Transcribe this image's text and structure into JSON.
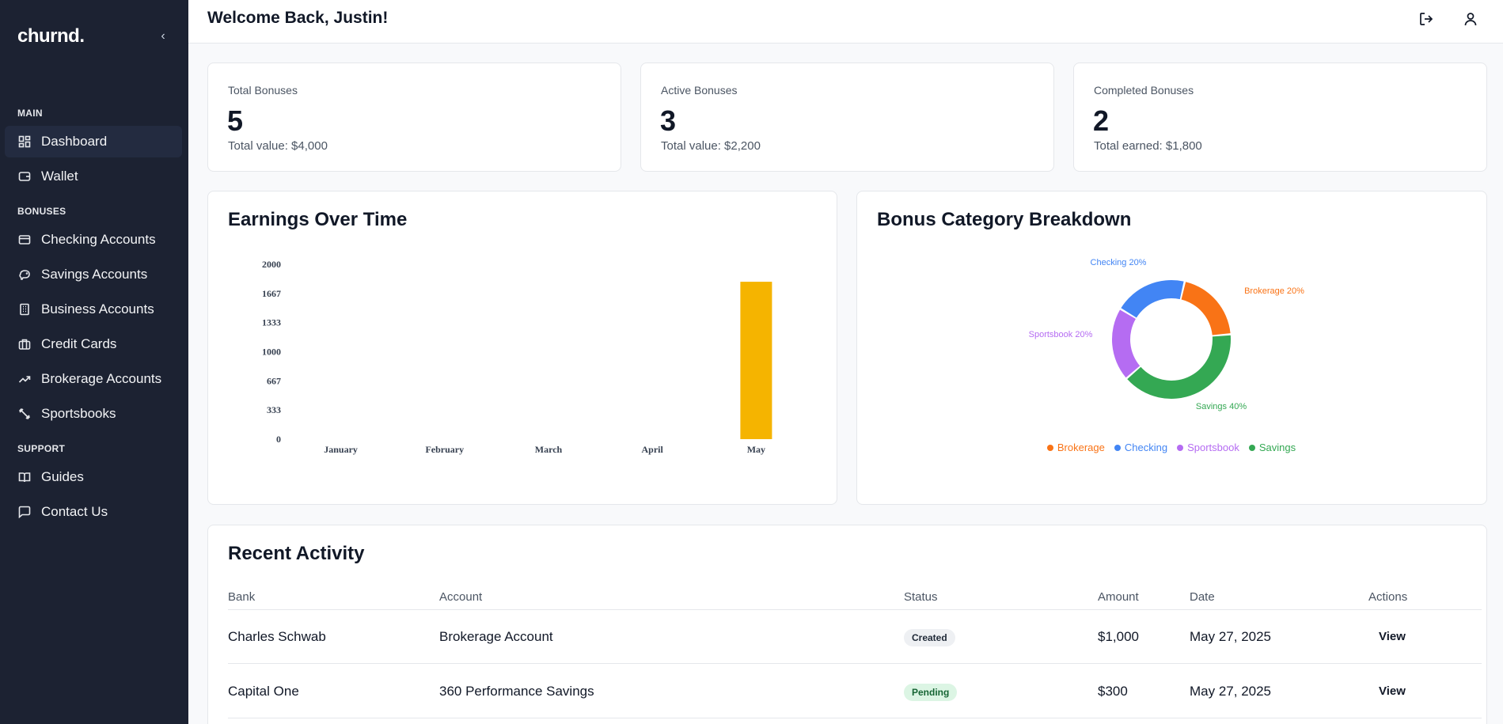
{
  "app": {
    "brand": "churnd.",
    "collapse_icon": "chevron-left-icon"
  },
  "sidebar": {
    "sections": [
      {
        "label": "MAIN"
      },
      {
        "label": "BONUSES"
      },
      {
        "label": "SUPPORT"
      }
    ],
    "items": [
      {
        "label": "Dashboard",
        "icon": "dashboard-grid-icon",
        "active": true
      },
      {
        "label": "Wallet",
        "icon": "wallet-icon"
      },
      {
        "label": "Checking Accounts",
        "icon": "credit-card-icon"
      },
      {
        "label": "Savings Accounts",
        "icon": "piggy-bank-icon"
      },
      {
        "label": "Business Accounts",
        "icon": "building-icon"
      },
      {
        "label": "Credit Cards",
        "icon": "briefcase-icon"
      },
      {
        "label": "Brokerage Accounts",
        "icon": "trending-up-icon"
      },
      {
        "label": "Sportsbooks",
        "icon": "dumbbell-icon"
      },
      {
        "label": "Guides",
        "icon": "book-open-icon"
      },
      {
        "label": "Contact Us",
        "icon": "message-square-icon"
      }
    ]
  },
  "header": {
    "welcome": "Welcome Back, Justin!",
    "logout_icon": "log-out-icon",
    "profile_icon": "user-icon"
  },
  "stats": [
    {
      "title": "Total Bonuses",
      "value": "5",
      "sub": "Total value: $4,000"
    },
    {
      "title": "Active Bonuses",
      "value": "3",
      "sub": "Total value: $2,200"
    },
    {
      "title": "Completed Bonuses",
      "value": "2",
      "sub": "Total earned: $1,800"
    }
  ],
  "earnings": {
    "title": "Earnings Over Time",
    "chart_data": {
      "type": "bar",
      "categories": [
        "January",
        "February",
        "March",
        "April",
        "May"
      ],
      "values": [
        0,
        0,
        0,
        0,
        1800
      ],
      "yticks": [
        "0",
        "333",
        "667",
        "1000",
        "1333",
        "1667",
        "2000"
      ],
      "ylim": [
        0,
        2000
      ],
      "color": "#f5b400"
    }
  },
  "breakdown": {
    "title": "Bonus Category Breakdown",
    "chart_data": {
      "type": "pie",
      "slices": [
        {
          "name": "Brokerage",
          "value": 20,
          "label": "Brokerage 20%",
          "color": "#f97316"
        },
        {
          "name": "Savings",
          "value": 40,
          "label": "Savings 40%",
          "color": "#34a853"
        },
        {
          "name": "Sportsbook",
          "value": 20,
          "label": "Sportsbook 20%",
          "color": "#b56cf2"
        },
        {
          "name": "Checking",
          "value": 20,
          "label": "Checking 20%",
          "color": "#4285f4"
        }
      ],
      "legend": [
        "Brokerage",
        "Checking",
        "Sportsbook",
        "Savings"
      ],
      "legend_position": "bottom"
    }
  },
  "activity": {
    "title": "Recent Activity",
    "columns": [
      "Bank",
      "Account",
      "Status",
      "Amount",
      "Date",
      "Actions"
    ],
    "rows": [
      {
        "bank": "Charles Schwab",
        "account": "Brokerage Account",
        "status": "Created",
        "amount": "$1,000",
        "date": "May 27, 2025",
        "action": "View"
      },
      {
        "bank": "Capital One",
        "account": "360 Performance Savings",
        "status": "Pending",
        "amount": "$300",
        "date": "May 27, 2025",
        "action": "View"
      }
    ]
  }
}
